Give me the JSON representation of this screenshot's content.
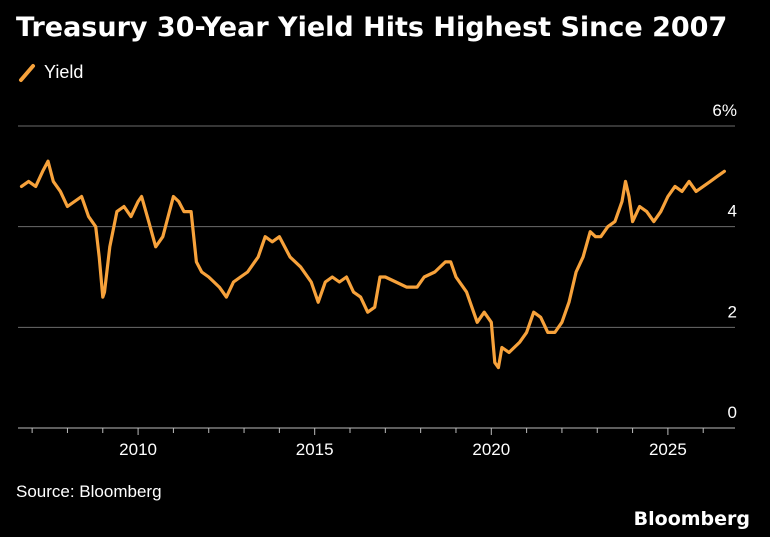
{
  "colors": {
    "background": "#000000",
    "series": "#f7a23b",
    "grid": "#6b6b6b",
    "text": "#ffffff"
  },
  "source": "Source: Bloomberg",
  "brand": "Bloomberg",
  "chart_data": {
    "type": "line",
    "title": "Treasury 30-Year Yield Hits Highest Since 2007",
    "xlabel": "",
    "ylabel": "",
    "legend": "top-left",
    "grid": "horizontal",
    "y_unit_label": "6%",
    "ylim": [
      0,
      6
    ],
    "y_ticks": [
      {
        "value": 0,
        "label": "0"
      },
      {
        "value": 2,
        "label": "2"
      },
      {
        "value": 4,
        "label": "4"
      },
      {
        "value": 6,
        "label": "6%"
      }
    ],
    "xlim": [
      2006.6,
      2026.9
    ],
    "x_ticks": [
      {
        "value": 2010,
        "label": "2010"
      },
      {
        "value": 2015,
        "label": "2015"
      },
      {
        "value": 2020,
        "label": "2020"
      },
      {
        "value": 2025,
        "label": "2025"
      }
    ],
    "series": [
      {
        "name": "Yield",
        "x": [
          2006.7,
          2006.9,
          2007.1,
          2007.3,
          2007.45,
          2007.6,
          2007.8,
          2008.0,
          2008.2,
          2008.4,
          2008.6,
          2008.8,
          2008.9,
          2009.0,
          2009.05,
          2009.2,
          2009.4,
          2009.6,
          2009.8,
          2010.0,
          2010.1,
          2010.3,
          2010.5,
          2010.7,
          2010.85,
          2011.0,
          2011.15,
          2011.3,
          2011.5,
          2011.65,
          2011.8,
          2012.0,
          2012.3,
          2012.5,
          2012.7,
          2012.9,
          2013.1,
          2013.4,
          2013.6,
          2013.8,
          2014.0,
          2014.3,
          2014.6,
          2014.9,
          2015.1,
          2015.3,
          2015.5,
          2015.7,
          2015.9,
          2016.1,
          2016.3,
          2016.5,
          2016.7,
          2016.85,
          2017.0,
          2017.3,
          2017.6,
          2017.9,
          2018.1,
          2018.4,
          2018.7,
          2018.85,
          2019.0,
          2019.3,
          2019.6,
          2019.8,
          2020.0,
          2020.1,
          2020.2,
          2020.3,
          2020.5,
          2020.8,
          2021.0,
          2021.2,
          2021.4,
          2021.6,
          2021.8,
          2022.0,
          2022.2,
          2022.4,
          2022.6,
          2022.8,
          2022.95,
          2023.1,
          2023.3,
          2023.5,
          2023.7,
          2023.8,
          2023.9,
          2024.0,
          2024.2,
          2024.4,
          2024.6,
          2024.8,
          2025.0,
          2025.2,
          2025.4,
          2025.6,
          2025.8,
          2026.0,
          2026.2,
          2026.4,
          2026.6
        ],
        "values": [
          4.8,
          4.9,
          4.8,
          5.1,
          5.3,
          4.9,
          4.7,
          4.4,
          4.5,
          4.6,
          4.2,
          4.0,
          3.4,
          2.6,
          2.7,
          3.6,
          4.3,
          4.4,
          4.2,
          4.5,
          4.6,
          4.1,
          3.6,
          3.8,
          4.2,
          4.6,
          4.5,
          4.3,
          4.3,
          3.3,
          3.1,
          3.0,
          2.8,
          2.6,
          2.9,
          3.0,
          3.1,
          3.4,
          3.8,
          3.7,
          3.8,
          3.4,
          3.2,
          2.9,
          2.5,
          2.9,
          3.0,
          2.9,
          3.0,
          2.7,
          2.6,
          2.3,
          2.4,
          3.0,
          3.0,
          2.9,
          2.8,
          2.8,
          3.0,
          3.1,
          3.3,
          3.3,
          3.0,
          2.7,
          2.1,
          2.3,
          2.1,
          1.3,
          1.2,
          1.6,
          1.5,
          1.7,
          1.9,
          2.3,
          2.2,
          1.9,
          1.9,
          2.1,
          2.5,
          3.1,
          3.4,
          3.9,
          3.8,
          3.8,
          4.0,
          4.1,
          4.5,
          4.9,
          4.6,
          4.1,
          4.4,
          4.3,
          4.1,
          4.3,
          4.6,
          4.8,
          4.7,
          4.9,
          4.7,
          4.8,
          4.9,
          5.0,
          5.1
        ]
      }
    ]
  }
}
